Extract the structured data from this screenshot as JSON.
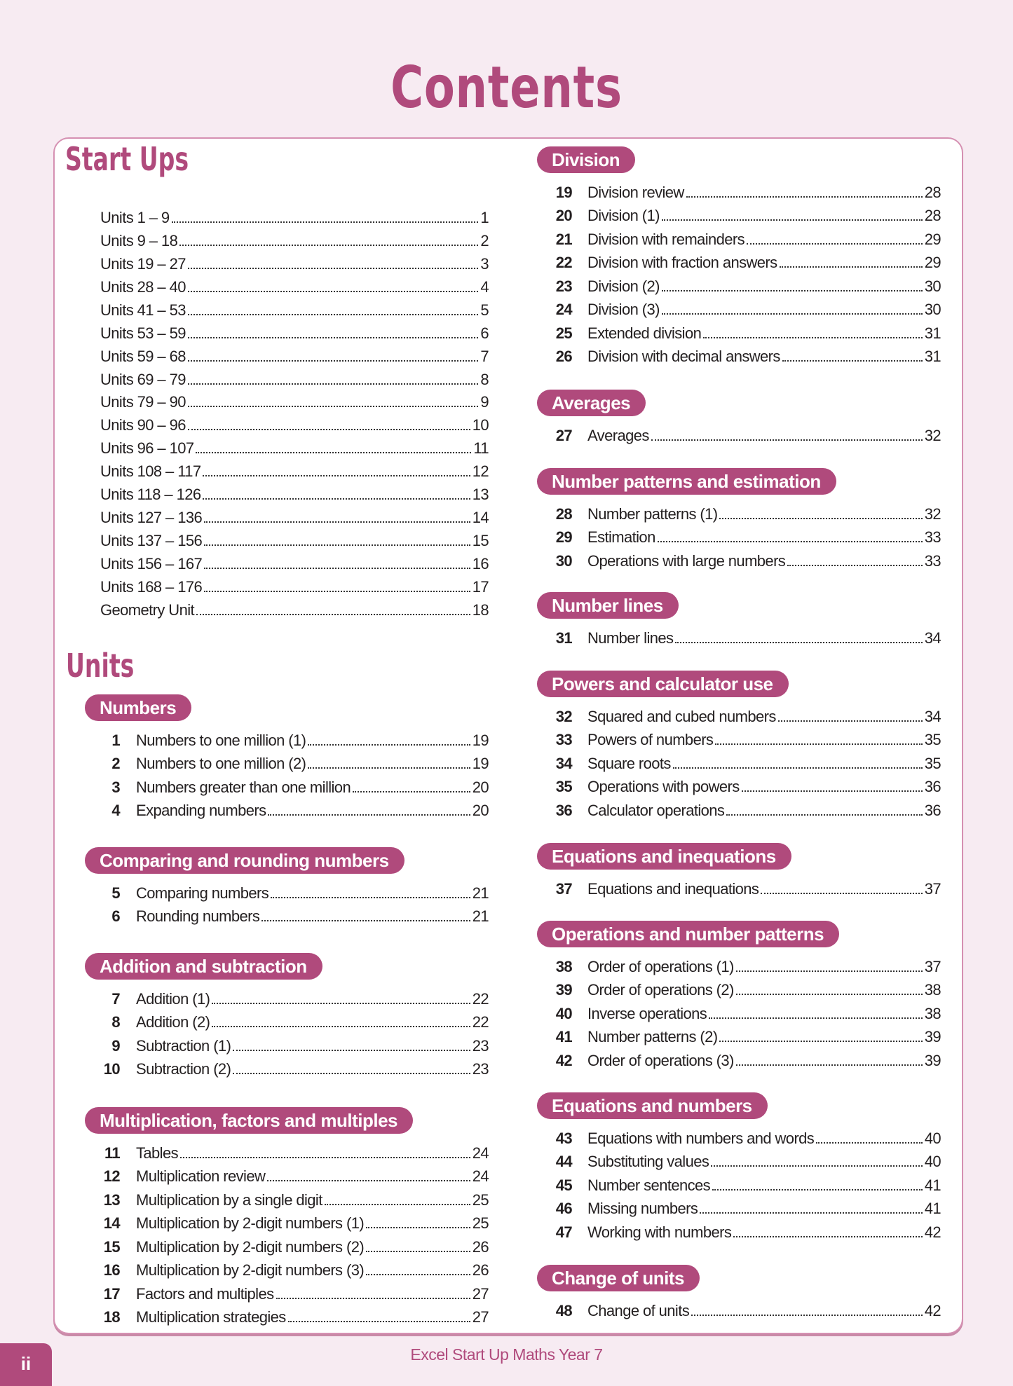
{
  "title": "Contents",
  "start_ups": {
    "heading": "Start Ups",
    "items": [
      {
        "title": "Units 1 – 9",
        "page": "1"
      },
      {
        "title": "Units 9 – 18",
        "page": "2"
      },
      {
        "title": "Units 19 – 27",
        "page": "3"
      },
      {
        "title": "Units 28 – 40",
        "page": "4"
      },
      {
        "title": "Units 41 – 53",
        "page": "5"
      },
      {
        "title": "Units 53 – 59",
        "page": "6"
      },
      {
        "title": "Units 59 –  68",
        "page": "7"
      },
      {
        "title": "Units 69 – 79",
        "page": "8"
      },
      {
        "title": "Units 79 – 90",
        "page": "9"
      },
      {
        "title": "Units 90 – 96",
        "page": "10"
      },
      {
        "title": "Units 96 – 107",
        "page": "11"
      },
      {
        "title": "Units 108 – 117",
        "page": "12"
      },
      {
        "title": "Units 118 – 126",
        "page": "13"
      },
      {
        "title": "Units 127 – 136",
        "page": "14"
      },
      {
        "title": "Units 137 – 156",
        "page": "15"
      },
      {
        "title": "Units 156 – 167",
        "page": "16"
      },
      {
        "title": "Units 168 – 176",
        "page": "17"
      },
      {
        "title": "Geometry Unit",
        "page": "18"
      }
    ]
  },
  "units": {
    "heading": "Units",
    "sections": [
      {
        "name": "Numbers",
        "items": [
          {
            "num": "1",
            "title": "Numbers to one million (1)",
            "page": "19"
          },
          {
            "num": "2",
            "title": "Numbers to one million (2)",
            "page": "19"
          },
          {
            "num": "3",
            "title": "Numbers greater than one million",
            "page": "20"
          },
          {
            "num": "4",
            "title": "Expanding numbers",
            "page": "20"
          }
        ]
      },
      {
        "name": "Comparing and rounding numbers",
        "items": [
          {
            "num": "5",
            "title": "Comparing numbers",
            "page": "21"
          },
          {
            "num": "6",
            "title": "Rounding numbers",
            "page": "21"
          }
        ]
      },
      {
        "name": "Addition and subtraction",
        "items": [
          {
            "num": "7",
            "title": "Addition (1)",
            "page": "22"
          },
          {
            "num": "8",
            "title": "Addition (2)",
            "page": "22"
          },
          {
            "num": "9",
            "title": "Subtraction (1)",
            "page": "23"
          },
          {
            "num": "10",
            "title": "Subtraction (2)",
            "page": "23"
          }
        ]
      },
      {
        "name": "Multiplication, factors and multiples",
        "items": [
          {
            "num": "11",
            "title": "Tables",
            "page": "24"
          },
          {
            "num": "12",
            "title": "Multiplication review",
            "page": "24"
          },
          {
            "num": "13",
            "title": "Multiplication by a single digit",
            "page": "25"
          },
          {
            "num": "14",
            "title": "Multiplication by 2-digit numbers (1)",
            "page": "25"
          },
          {
            "num": "15",
            "title": "Multiplication by 2-digit numbers (2)",
            "page": "26"
          },
          {
            "num": "16",
            "title": "Multiplication by 2-digit numbers (3)",
            "page": "26"
          },
          {
            "num": "17",
            "title": "Factors and multiples",
            "page": "27"
          },
          {
            "num": "18",
            "title": "Multiplication strategies",
            "page": "27"
          }
        ]
      },
      {
        "name": "Division",
        "items": [
          {
            "num": "19",
            "title": "Division review",
            "page": "28"
          },
          {
            "num": "20",
            "title": "Division (1)",
            "page": "28"
          },
          {
            "num": "21",
            "title": "Division with remainders",
            "page": "29"
          },
          {
            "num": "22",
            "title": "Division with fraction answers",
            "page": "29"
          },
          {
            "num": "23",
            "title": "Division (2)",
            "page": "30"
          },
          {
            "num": "24",
            "title": "Division (3)",
            "page": "30"
          },
          {
            "num": "25",
            "title": "Extended division",
            "page": "31"
          },
          {
            "num": "26",
            "title": "Division with decimal answers",
            "page": "31"
          }
        ]
      },
      {
        "name": "Averages",
        "items": [
          {
            "num": "27",
            "title": "Averages",
            "page": "32"
          }
        ]
      },
      {
        "name": "Number patterns and estimation",
        "items": [
          {
            "num": "28",
            "title": "Number patterns (1)",
            "page": "32"
          },
          {
            "num": "29",
            "title": "Estimation",
            "page": "33"
          },
          {
            "num": "30",
            "title": "Operations with large numbers",
            "page": "33"
          }
        ]
      },
      {
        "name": "Number lines",
        "items": [
          {
            "num": "31",
            "title": "Number lines",
            "page": "34"
          }
        ]
      },
      {
        "name": "Powers and calculator use",
        "items": [
          {
            "num": "32",
            "title": "Squared and cubed numbers",
            "page": "34"
          },
          {
            "num": "33",
            "title": "Powers of numbers",
            "page": "35"
          },
          {
            "num": "34",
            "title": "Square roots",
            "page": "35"
          },
          {
            "num": "35",
            "title": "Operations with powers",
            "page": "36"
          },
          {
            "num": "36",
            "title": "Calculator operations",
            "page": "36"
          }
        ]
      },
      {
        "name": "Equations and inequations",
        "items": [
          {
            "num": "37",
            "title": "Equations and inequations",
            "page": "37"
          }
        ]
      },
      {
        "name": "Operations and number patterns",
        "items": [
          {
            "num": "38",
            "title": "Order of operations (1)",
            "page": "37"
          },
          {
            "num": "39",
            "title": "Order of operations (2)",
            "page": "38"
          },
          {
            "num": "40",
            "title": "Inverse operations",
            "page": "38"
          },
          {
            "num": "41",
            "title": "Number patterns (2)",
            "page": "39"
          },
          {
            "num": "42",
            "title": "Order of operations (3)",
            "page": "39"
          }
        ]
      },
      {
        "name": "Equations and numbers",
        "items": [
          {
            "num": "43",
            "title": "Equations with numbers and words",
            "page": "40"
          },
          {
            "num": "44",
            "title": "Substituting values",
            "page": "40"
          },
          {
            "num": "45",
            "title": "Number sentences",
            "page": "41"
          },
          {
            "num": "46",
            "title": "Missing numbers",
            "page": "41"
          },
          {
            "num": "47",
            "title": "Working with numbers",
            "page": "42"
          }
        ]
      },
      {
        "name": "Change of units",
        "items": [
          {
            "num": "48",
            "title": "Change of units",
            "page": "42"
          }
        ]
      }
    ]
  },
  "footer": {
    "page_number": "ii",
    "book_title": "Excel Start Up Maths Year 7"
  },
  "colors": {
    "accent": "#b04a7c",
    "background": "#f7ebf2",
    "border": "#d590b2"
  }
}
